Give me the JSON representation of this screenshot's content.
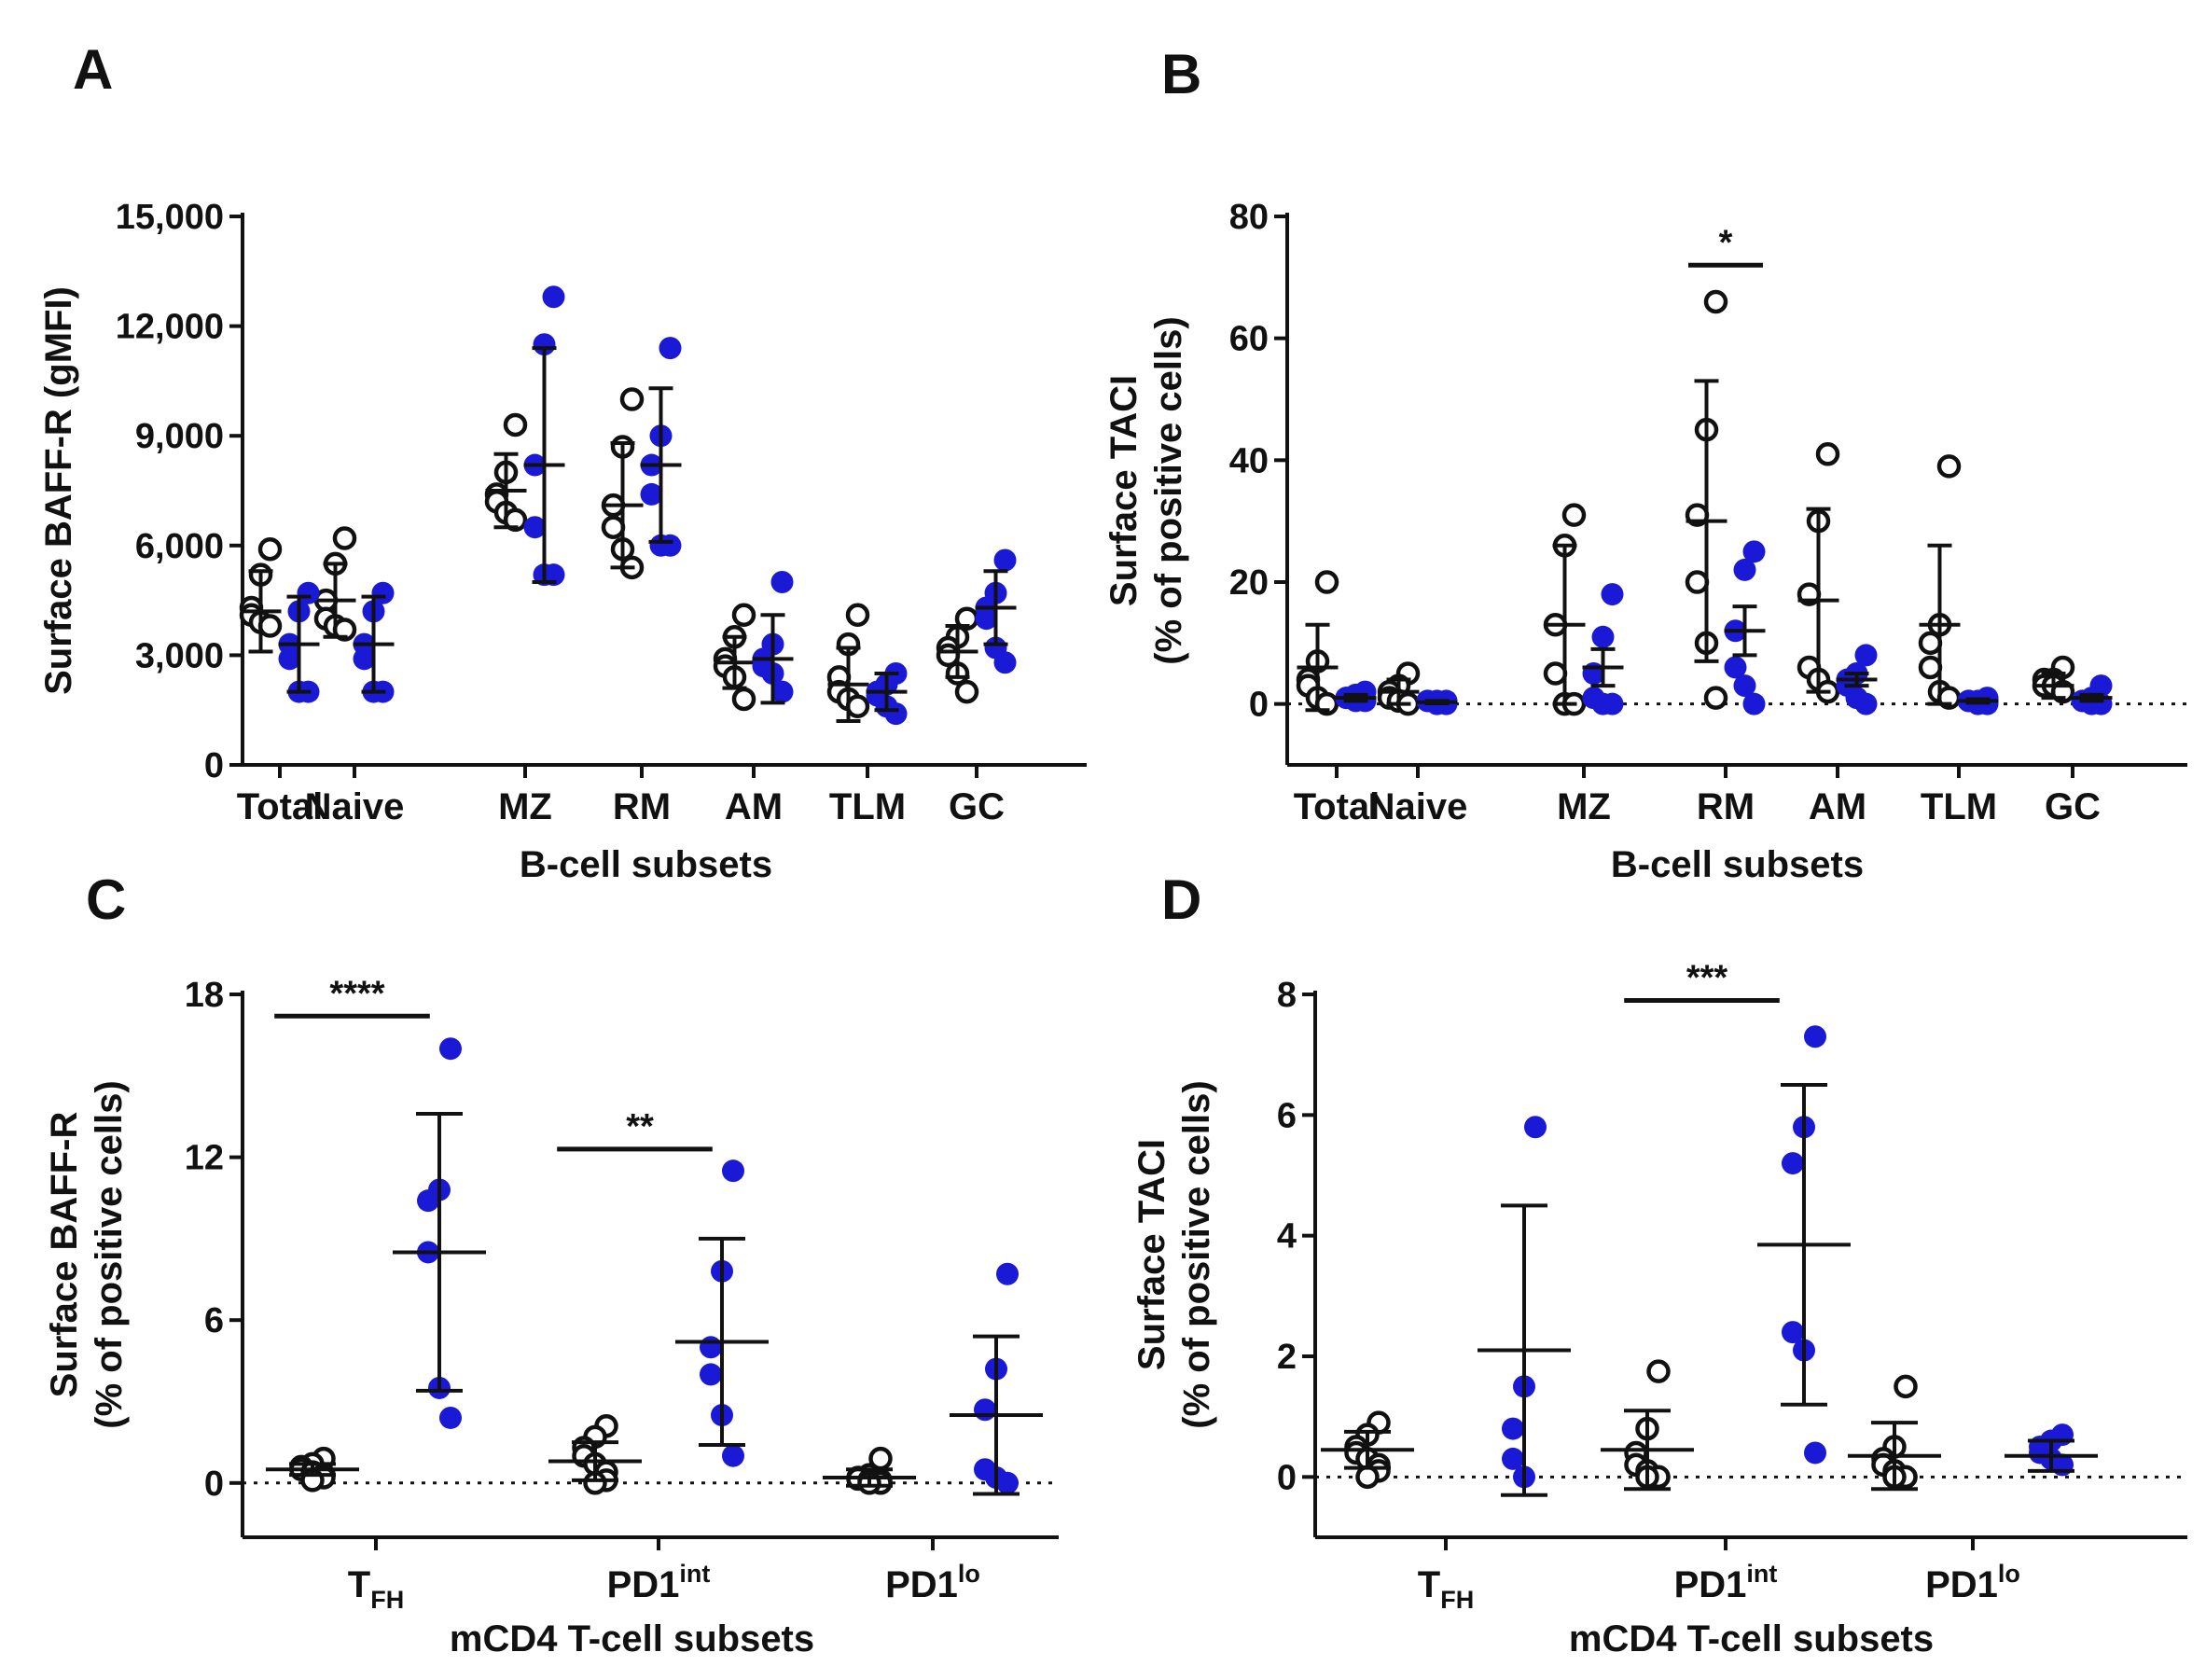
{
  "colors": {
    "control": "#111111",
    "treated": "#1a1ad6",
    "background": "#ffffff"
  },
  "chart_data": [
    {
      "panel": "A",
      "type": "scatter",
      "ylabel": [
        "Surface BAFF-R (gMFI)"
      ],
      "xlabel": "B-cell subsets",
      "ylim": [
        0,
        15000
      ],
      "yticks": [
        0,
        3000,
        6000,
        9000,
        12000,
        15000
      ],
      "ytick_labels": [
        "0",
        "3,000",
        "6,000",
        "9,000",
        "12,000",
        "15,000"
      ],
      "zero_line": false,
      "categories": [
        {
          "label": "Total"
        },
        {
          "label": "Naive"
        },
        {
          "label": "MZ"
        },
        {
          "label": "RM"
        },
        {
          "label": "AM"
        },
        {
          "label": "TLM"
        },
        {
          "label": "GC"
        }
      ],
      "series": [
        {
          "style": "open",
          "points": [
            [
              5900,
              5200,
              4300,
              4100,
              3900,
              3800
            ],
            [
              6200,
              5500,
              4500,
              4000,
              3800,
              3700
            ],
            [
              9300,
              8000,
              7400,
              7200,
              6900,
              6700
            ],
            [
              10000,
              8700,
              7100,
              6500,
              5900,
              5400
            ],
            [
              4100,
              3500,
              2900,
              2700,
              2400,
              1800
            ],
            [
              4100,
              3300,
              2400,
              2000,
              1800,
              1600
            ],
            [
              4000,
              3500,
              3200,
              3000,
              2500,
              2000
            ]
          ],
          "mean": [
            4200,
            4500,
            7500,
            7100,
            2800,
            2200,
            3100
          ],
          "sd": [
            1100,
            1000,
            1000,
            1700,
            700,
            1000,
            700
          ]
        },
        {
          "style": "filled",
          "points": [
            [
              4700,
              4200,
              3300,
              2900,
              2000,
              2000
            ],
            [
              4700,
              4200,
              3300,
              2900,
              2000,
              2000
            ],
            [
              12800,
              11500,
              8200,
              6500,
              5200,
              5200
            ],
            [
              11400,
              9000,
              8200,
              7400,
              6000,
              6000
            ],
            [
              5000,
              3300,
              2900,
              2700,
              2500,
              2000
            ],
            [
              2500,
              2200,
              2000,
              1900,
              1600,
              1400
            ],
            [
              5600,
              4700,
              4300,
              4000,
              3200,
              2800
            ]
          ],
          "mean": [
            3300,
            3300,
            8200,
            8200,
            2900,
            2000,
            4300
          ],
          "sd": [
            1300,
            1300,
            3200,
            2100,
            1200,
            500,
            1000
          ]
        }
      ],
      "significance": []
    },
    {
      "panel": "B",
      "type": "scatter",
      "ylabel": [
        "Surface TACI",
        "(% of positive cells)"
      ],
      "xlabel": "B-cell subsets",
      "ylim": [
        -10,
        80
      ],
      "yticks": [
        0,
        20,
        40,
        60,
        80
      ],
      "ytick_labels": [
        "0",
        "20",
        "40",
        "60",
        "80"
      ],
      "zero_line": true,
      "categories": [
        {
          "label": "Total"
        },
        {
          "label": "Naive"
        },
        {
          "label": "MZ"
        },
        {
          "label": "RM"
        },
        {
          "label": "AM"
        },
        {
          "label": "TLM"
        },
        {
          "label": "GC"
        }
      ],
      "series": [
        {
          "style": "open",
          "points": [
            [
              20,
              7,
              4,
              3,
              1,
              0
            ],
            [
              5,
              3,
              2,
              1,
              0.5,
              0
            ],
            [
              31,
              26,
              13,
              5,
              0,
              0
            ],
            [
              66,
              45,
              31,
              20,
              10,
              1
            ],
            [
              41,
              30,
              18,
              6,
              4,
              2
            ],
            [
              39,
              13,
              10,
              6,
              2,
              1
            ],
            [
              6,
              4,
              4,
              3,
              3,
              2
            ]
          ],
          "mean": [
            6,
            2,
            13,
            30,
            17,
            13,
            3
          ],
          "sd": [
            7,
            2,
            13,
            23,
            15,
            13,
            2
          ]
        },
        {
          "style": "filled",
          "points": [
            [
              2,
              1.5,
              1,
              1,
              0.5,
              0.5
            ],
            [
              0.5,
              0.5,
              0.5,
              0.5,
              0,
              0
            ],
            [
              18,
              11,
              5,
              1,
              0,
              0
            ],
            [
              25,
              22,
              12,
              6,
              3,
              0
            ],
            [
              8,
              5,
              4,
              3,
              1,
              0
            ],
            [
              1,
              0.5,
              0.5,
              0.5,
              0,
              0
            ],
            [
              3,
              1,
              0.5,
              0.5,
              0,
              0
            ]
          ],
          "mean": [
            1,
            0.3,
            6,
            12,
            4,
            0.5,
            1
          ],
          "sd": [
            0.5,
            0.2,
            3,
            4,
            1,
            0.3,
            0.5
          ]
        }
      ],
      "significance": [
        {
          "category_index": 3,
          "label": "*",
          "y": 72
        }
      ]
    },
    {
      "panel": "C",
      "type": "scatter",
      "ylabel": [
        "Surface BAFF-R",
        "(% of positive cells)"
      ],
      "xlabel": "mCD4 T-cell subsets",
      "ylim": [
        -2,
        18
      ],
      "yticks": [
        0,
        6,
        12,
        18
      ],
      "ytick_labels": [
        "0",
        "6",
        "12",
        "18"
      ],
      "zero_line": true,
      "categories": [
        {
          "main": "T",
          "sub": "FH"
        },
        {
          "main": "PD1",
          "sup": "int"
        },
        {
          "main": "PD1",
          "sup": "lo"
        }
      ],
      "series": [
        {
          "style": "open",
          "points": [
            [
              0.9,
              0.7,
              0.6,
              0.5,
              0.4,
              0.3,
              0.2,
              0.1
            ],
            [
              2.1,
              1.7,
              1.3,
              1.0,
              0.7,
              0.4,
              0.1,
              0
            ],
            [
              0.9,
              0.3,
              0.2,
              0.15,
              0.1,
              0.1,
              0,
              0
            ]
          ],
          "mean": [
            0.5,
            0.8,
            0.2
          ],
          "sd": [
            0.2,
            0.7,
            0.3
          ]
        },
        {
          "style": "filled",
          "points": [
            [
              16,
              10.8,
              10.4,
              8.5,
              3.5,
              2.4
            ],
            [
              11.5,
              7.8,
              5.0,
              4.0,
              2.5,
              1.0
            ],
            [
              7.7,
              4.2,
              2.7,
              0.5,
              0.2,
              0
            ]
          ],
          "mean": [
            8.5,
            5.2,
            2.5
          ],
          "sd": [
            5.1,
            3.8,
            2.9
          ]
        }
      ],
      "significance": [
        {
          "category_index": 0,
          "label": "****",
          "y": 17.2
        },
        {
          "category_index": 1,
          "label": "**",
          "y": 12.3
        }
      ]
    },
    {
      "panel": "D",
      "type": "scatter",
      "ylabel": [
        "Surface TACI",
        "(% of positive cells)"
      ],
      "xlabel": "mCD4 T-cell subsets",
      "ylim": [
        -1,
        8
      ],
      "yticks": [
        0,
        2,
        4,
        6,
        8
      ],
      "ytick_labels": [
        "0",
        "2",
        "4",
        "6",
        "8"
      ],
      "zero_line": true,
      "categories": [
        {
          "main": "T",
          "sub": "FH"
        },
        {
          "main": "PD1",
          "sup": "int"
        },
        {
          "main": "PD1",
          "sup": "lo"
        }
      ],
      "series": [
        {
          "style": "open",
          "points": [
            [
              0.9,
              0.7,
              0.5,
              0.4,
              0.3,
              0.2,
              0.1,
              0
            ],
            [
              1.75,
              0.8,
              0.4,
              0.2,
              0.1,
              0,
              0,
              0
            ],
            [
              1.5,
              0.5,
              0.3,
              0.2,
              0.1,
              0,
              0,
              0
            ]
          ],
          "mean": [
            0.45,
            0.45,
            0.35
          ],
          "sd": [
            0.3,
            0.65,
            0.55
          ]
        },
        {
          "style": "filled",
          "points": [
            [
              5.8,
              1.5,
              0.8,
              0.3,
              0
            ],
            [
              7.3,
              5.8,
              5.2,
              2.4,
              2.1,
              0.4
            ],
            [
              0.7,
              0.6,
              0.5,
              0.4,
              0.3,
              0.2
            ]
          ],
          "mean": [
            2.1,
            3.85,
            0.35
          ],
          "sd": [
            2.4,
            2.65,
            0.25
          ]
        }
      ],
      "significance": [
        {
          "category_index": 1,
          "label": "***",
          "y": 7.9
        }
      ]
    }
  ]
}
